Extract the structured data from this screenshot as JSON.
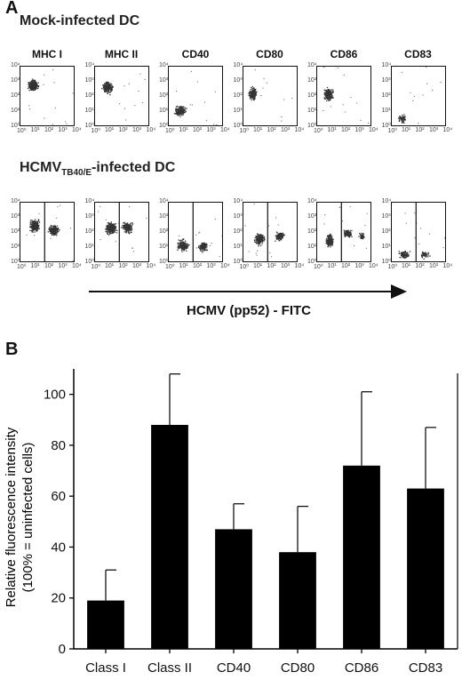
{
  "panel_a": {
    "letter": "A",
    "mock_title": "Mock-infected DC",
    "hcmv_title_prefix": "HCMV",
    "hcmv_title_sub": "TB40/E",
    "hcmv_title_suffix": "-infected DC",
    "markers": [
      "MHC I",
      "MHC II",
      "CD40",
      "CD80",
      "CD86",
      "CD83"
    ],
    "y_ticks": [
      "10⁰",
      "10¹",
      "10²",
      "10³",
      "10⁴"
    ],
    "x_ticks": [
      "10⁰",
      "10¹",
      "10²",
      "10³",
      "10⁴"
    ],
    "x_axis_title": "HCMV (pp52) - FITC"
  },
  "panel_b": {
    "letter": "B"
  },
  "chart_data": {
    "type": "bar",
    "categories": [
      "Class I",
      "Class II",
      "CD40",
      "CD80",
      "CD86",
      "CD83"
    ],
    "values": [
      19,
      88,
      47,
      38,
      72,
      63
    ],
    "errors": [
      12,
      20,
      10,
      18,
      29,
      24
    ],
    "ylabel_line1": "Relative fluorescence intensity",
    "ylabel_line2": "(100% = uninfected cells)",
    "ylim": [
      0,
      110
    ],
    "yticks": [
      0,
      20,
      40,
      60,
      80,
      100
    ],
    "bar_color": "#000000"
  }
}
